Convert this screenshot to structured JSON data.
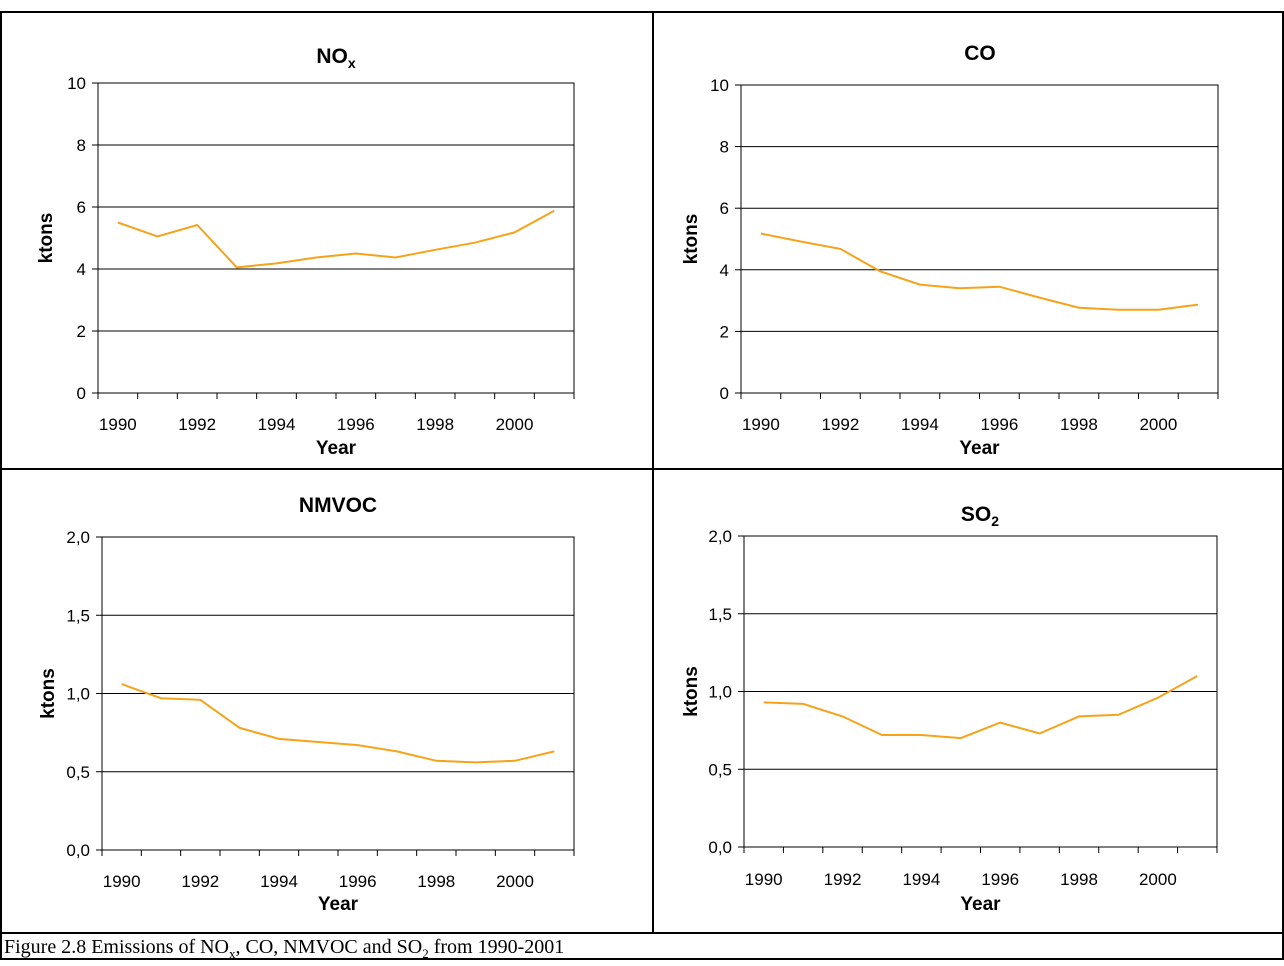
{
  "figure": {
    "caption_parts": [
      "Figure 2.8 Emissions of NO",
      "x",
      ", CO, NMVOC and SO",
      "2",
      " from 1990-2001"
    ]
  },
  "line_color": "#f5a31a",
  "chart_data": [
    {
      "type": "line",
      "title": "NO",
      "title_sub": "x",
      "xlabel": "Year",
      "ylabel": "ktons",
      "x": [
        1990,
        1991,
        1992,
        1993,
        1994,
        1995,
        1996,
        1997,
        1998,
        1999,
        2000,
        2001
      ],
      "xticks": [
        "1990",
        "1992",
        "1994",
        "1996",
        "1998",
        "2000"
      ],
      "ylim": [
        0,
        10
      ],
      "yticks": [
        "0",
        "2",
        "4",
        "6",
        "8",
        "10"
      ],
      "grid": true,
      "series": [
        {
          "values": [
            5.5,
            5.05,
            5.42,
            4.05,
            4.18,
            4.37,
            4.5,
            4.37,
            4.62,
            4.85,
            5.18,
            5.88
          ]
        }
      ]
    },
    {
      "type": "line",
      "title": "CO",
      "title_sub": "",
      "xlabel": "Year",
      "ylabel": "ktons",
      "x": [
        1990,
        1991,
        1992,
        1993,
        1994,
        1995,
        1996,
        1997,
        1998,
        1999,
        2000,
        2001
      ],
      "xticks": [
        "1990",
        "1992",
        "1994",
        "1996",
        "1998",
        "2000"
      ],
      "ylim": [
        0,
        10
      ],
      "yticks": [
        "0",
        "2",
        "4",
        "6",
        "8",
        "10"
      ],
      "grid": true,
      "series": [
        {
          "values": [
            5.18,
            4.92,
            4.68,
            3.95,
            3.52,
            3.4,
            3.45,
            3.1,
            2.77,
            2.7,
            2.7,
            2.87
          ]
        }
      ]
    },
    {
      "type": "line",
      "title": "NMVOC",
      "title_sub": "",
      "xlabel": "Year",
      "ylabel": "ktons",
      "x": [
        1990,
        1991,
        1992,
        1993,
        1994,
        1995,
        1996,
        1997,
        1998,
        1999,
        2000,
        2001
      ],
      "xticks": [
        "1990",
        "1992",
        "1994",
        "1996",
        "1998",
        "2000"
      ],
      "ylim": [
        0,
        2
      ],
      "yticks": [
        "0,0",
        "0,5",
        "1,0",
        "1,5",
        "2,0"
      ],
      "grid": true,
      "series": [
        {
          "values": [
            1.06,
            0.97,
            0.96,
            0.78,
            0.71,
            0.69,
            0.67,
            0.63,
            0.57,
            0.56,
            0.57,
            0.63
          ]
        }
      ]
    },
    {
      "type": "line",
      "title": "SO",
      "title_sub": "2",
      "xlabel": "Year",
      "ylabel": "ktons",
      "x": [
        1990,
        1991,
        1992,
        1993,
        1994,
        1995,
        1996,
        1997,
        1998,
        1999,
        2000,
        2001
      ],
      "xticks": [
        "1990",
        "1992",
        "1994",
        "1996",
        "1998",
        "2000"
      ],
      "ylim": [
        0,
        2
      ],
      "yticks": [
        "0,0",
        "0,5",
        "1,0",
        "1,5",
        "2,0"
      ],
      "grid": true,
      "series": [
        {
          "values": [
            0.93,
            0.92,
            0.84,
            0.72,
            0.72,
            0.7,
            0.8,
            0.73,
            0.84,
            0.85,
            0.96,
            1.1
          ]
        }
      ]
    }
  ]
}
